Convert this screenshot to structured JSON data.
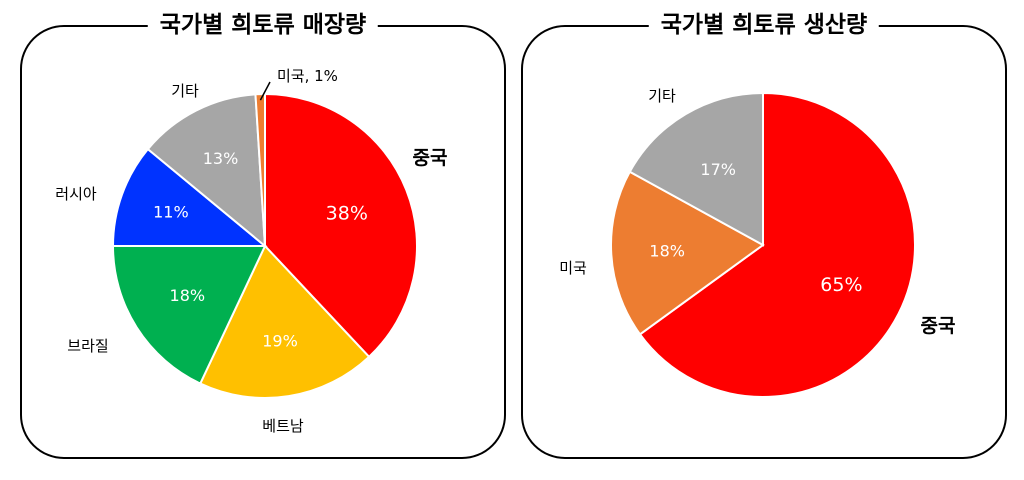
{
  "chart_data": [
    {
      "type": "pie",
      "title": "국가별 희토류 매장량",
      "unit": "%",
      "colors": {
        "slice_border": "#ffffff",
        "leader_line": "#000000"
      },
      "slices": [
        {
          "label": "중국",
          "value": 38,
          "value_label": "38%",
          "color": "#ff0000",
          "label_color": "#ffffff"
        },
        {
          "label": "베트남",
          "value": 19,
          "value_label": "19%",
          "color": "#ffc000",
          "label_color": "#ffffff"
        },
        {
          "label": "브라질",
          "value": 18,
          "value_label": "18%",
          "color": "#00b050",
          "label_color": "#ffffff"
        },
        {
          "label": "러시아",
          "value": 11,
          "value_label": "11%",
          "color": "#0033ff",
          "label_color": "#ffffff"
        },
        {
          "label": "기타",
          "value": 13,
          "value_label": "13%",
          "color": "#a6a6a6",
          "label_color": "#ffffff"
        },
        {
          "label": "미국, 1%",
          "value": 1,
          "value_label": "",
          "color": "#ed7d31",
          "label_color": "#ffffff"
        }
      ]
    },
    {
      "type": "pie",
      "title": "국가별 희토류 생산량",
      "unit": "%",
      "colors": {
        "slice_border": "#ffffff"
      },
      "slices": [
        {
          "label": "중국",
          "value": 65,
          "value_label": "65%",
          "color": "#ff0000",
          "label_color": "#ffffff"
        },
        {
          "label": "미국",
          "value": 18,
          "value_label": "18%",
          "color": "#ed7d31",
          "label_color": "#ffffff"
        },
        {
          "label": "기타",
          "value": 17,
          "value_label": "17%",
          "color": "#a6a6a6",
          "label_color": "#ffffff"
        }
      ]
    }
  ]
}
